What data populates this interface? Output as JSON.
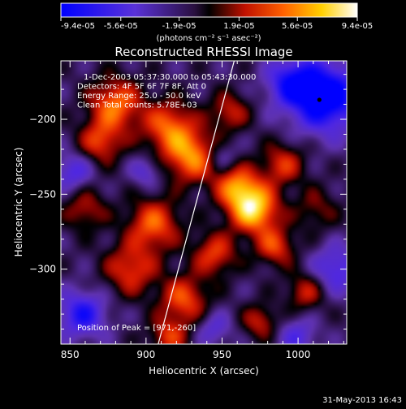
{
  "colorbar": {
    "ticks": [
      "-9.4e-05",
      "-5.6e-05",
      "-1.9e-05",
      "1.9e-05",
      "5.6e-05",
      "9.4e-05"
    ],
    "units": "(photons cm⁻² s⁻¹ asec⁻²)",
    "min": -9.4e-05,
    "max": 9.4e-05
  },
  "chart_data": {
    "type": "heatmap",
    "title": "Reconstructed RHESSI Image",
    "xlabel": "Heliocentric X (arcsec)",
    "ylabel": "Heliocentric Y (arcsec)",
    "xlim": [
      844,
      1032
    ],
    "ylim": [
      -350,
      -161
    ],
    "xticks": [
      850,
      900,
      950,
      1000
    ],
    "yticks": [
      -200,
      -250,
      -300
    ],
    "annotations": [
      "1-Dec-2003 05:37:30.000 to 05:43:30.000",
      "Detectors: 4F 5F 6F 7F 8F, Att 0",
      "Energy Range: 25.0 - 50.0 keV",
      "Clean     Total counts: 5.78E+03"
    ],
    "peak_label": "Position of Peak = [971,-260]",
    "peak": {
      "x": 971,
      "y": -260
    },
    "marker": {
      "x": 1014,
      "y": -187
    },
    "limb_line": [
      {
        "x": 908,
        "y": -350
      },
      {
        "x": 958,
        "y": -161
      }
    ],
    "blobs": [
      {
        "x": 971,
        "y": -260,
        "a": 1.0,
        "s": 11
      },
      {
        "x": 960,
        "y": -245,
        "a": 0.7,
        "s": 10
      },
      {
        "x": 930,
        "y": -225,
        "a": 0.75,
        "s": 12
      },
      {
        "x": 915,
        "y": -205,
        "a": 0.65,
        "s": 12
      },
      {
        "x": 880,
        "y": -190,
        "a": 0.7,
        "s": 12
      },
      {
        "x": 870,
        "y": -215,
        "a": 0.55,
        "s": 10
      },
      {
        "x": 905,
        "y": -270,
        "a": 0.65,
        "s": 12
      },
      {
        "x": 890,
        "y": -300,
        "a": 0.55,
        "s": 12
      },
      {
        "x": 925,
        "y": -320,
        "a": 0.6,
        "s": 11
      },
      {
        "x": 945,
        "y": -290,
        "a": 0.55,
        "s": 10
      },
      {
        "x": 990,
        "y": -230,
        "a": 0.5,
        "s": 10
      },
      {
        "x": 985,
        "y": -285,
        "a": 0.55,
        "s": 9
      },
      {
        "x": 1005,
        "y": -315,
        "a": 0.45,
        "s": 9
      },
      {
        "x": 975,
        "y": -335,
        "a": 0.45,
        "s": 8
      },
      {
        "x": 915,
        "y": -345,
        "a": 0.5,
        "s": 9
      },
      {
        "x": 955,
        "y": -195,
        "a": 0.45,
        "s": 9
      },
      {
        "x": 1012,
        "y": -260,
        "a": 0.3,
        "s": 10
      },
      {
        "x": 860,
        "y": -260,
        "a": 0.4,
        "s": 10
      },
      {
        "x": 1018,
        "y": -185,
        "a": -1.0,
        "s": 16
      },
      {
        "x": 995,
        "y": -175,
        "a": -0.6,
        "s": 11
      },
      {
        "x": 858,
        "y": -330,
        "a": -0.65,
        "s": 11
      },
      {
        "x": 852,
        "y": -235,
        "a": -0.45,
        "s": 9
      },
      {
        "x": 1025,
        "y": -300,
        "a": -0.5,
        "s": 11
      },
      {
        "x": 1000,
        "y": -345,
        "a": -0.4,
        "s": 9
      },
      {
        "x": 945,
        "y": -340,
        "a": -0.35,
        "s": 8
      },
      {
        "x": 900,
        "y": -235,
        "a": -0.35,
        "s": 7
      },
      {
        "x": 950,
        "y": -225,
        "a": -0.3,
        "s": 7
      }
    ],
    "baseline": -0.18
  },
  "footer": {
    "timestamp": "31-May-2013 16:43"
  }
}
